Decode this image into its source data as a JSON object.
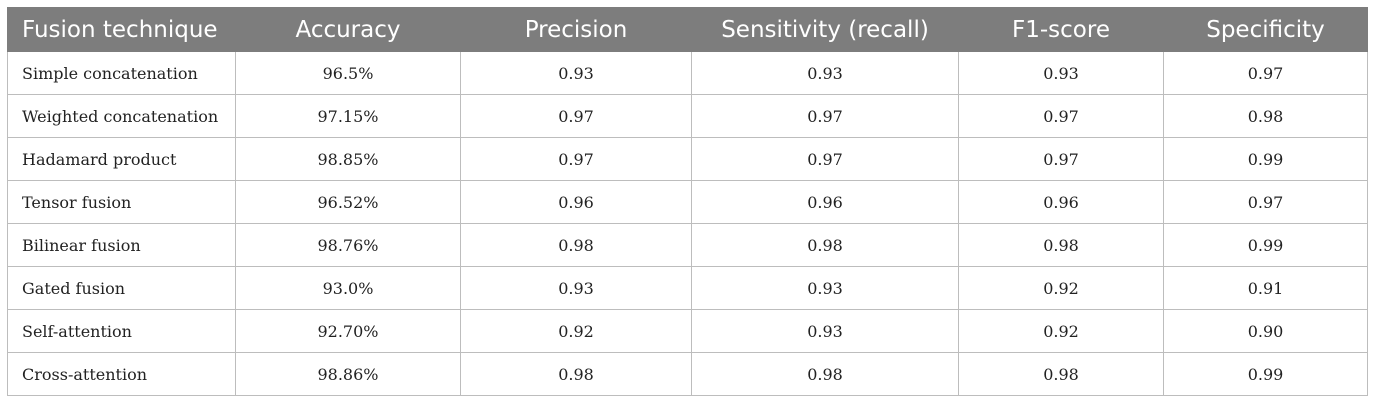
{
  "table": {
    "headers": [
      "Fusion technique",
      "Accuracy",
      "Precision",
      "Sensitivity (recall)",
      "F1-score",
      "Specificity"
    ],
    "rows": [
      [
        "Simple concatenation",
        "96.5%",
        "0.93",
        "0.93",
        "0.93",
        "0.97"
      ],
      [
        "Weighted concatenation",
        "97.15%",
        "0.97",
        "0.97",
        "0.97",
        "0.98"
      ],
      [
        "Hadamard product",
        "98.85%",
        "0.97",
        "0.97",
        "0.97",
        "0.99"
      ],
      [
        "Tensor fusion",
        "96.52%",
        "0.96",
        "0.96",
        "0.96",
        "0.97"
      ],
      [
        "Bilinear fusion",
        "98.76%",
        "0.98",
        "0.98",
        "0.98",
        "0.99"
      ],
      [
        "Gated fusion",
        "93.0%",
        "0.93",
        "0.93",
        "0.92",
        "0.91"
      ],
      [
        "Self-attention",
        "92.70%",
        "0.92",
        "0.93",
        "0.92",
        "0.90"
      ],
      [
        "Cross-attention",
        "98.86%",
        "0.98",
        "0.98",
        "0.98",
        "0.99"
      ]
    ]
  },
  "colors": {
    "header_background": "#7d7d7d",
    "header_text": "#ffffff",
    "grid": "#bdbdbd"
  }
}
